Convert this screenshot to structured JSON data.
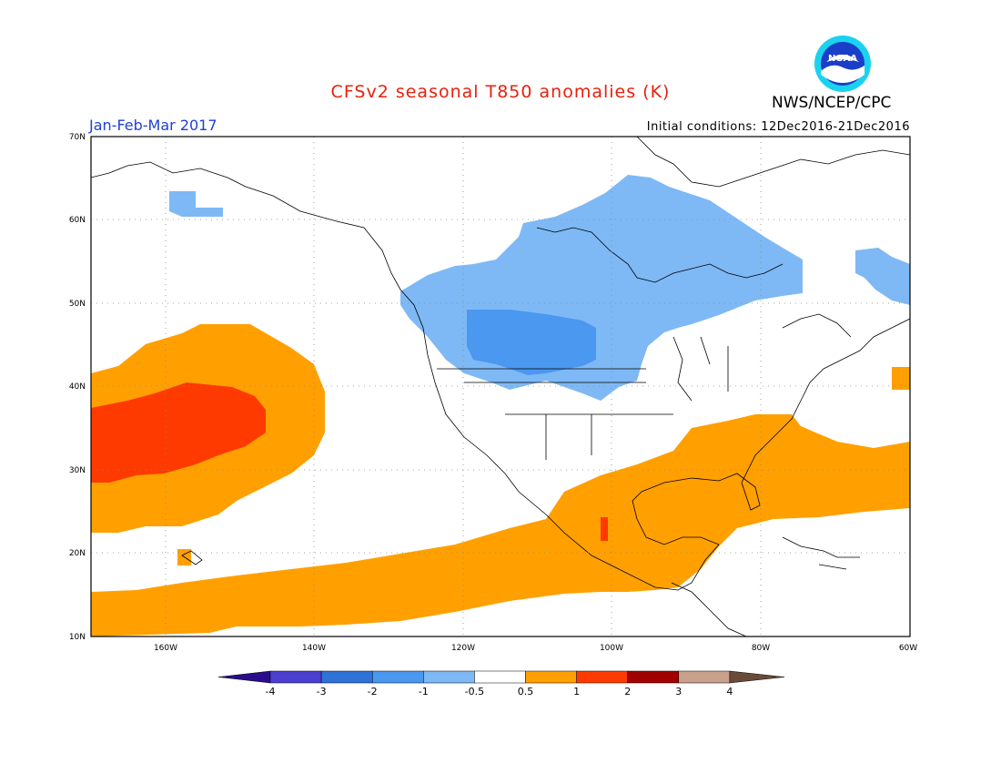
{
  "title": "CFSv2 seasonal T850 anomalies (K)",
  "agency": "NWS/NCEP/CPC",
  "period": "Jan-Feb-Mar 2017",
  "initial_conditions": "Initial conditions: 12Dec2016-21Dec2016",
  "logo_text": "NOAA",
  "lat_labels": [
    "70N",
    "60N",
    "50N",
    "40N",
    "30N",
    "20N",
    "10N"
  ],
  "lon_labels": [
    "160W",
    "140W",
    "120W",
    "100W",
    "80W",
    "60W"
  ],
  "colorbar": {
    "labels": [
      "-4",
      "-3",
      "-2",
      "-1",
      "-0.5",
      "0.5",
      "1",
      "2",
      "3",
      "4"
    ],
    "colors": [
      "#2a0d8c",
      "#4b3fcf",
      "#2f73d9",
      "#4a98ef",
      "#7eb9f5",
      "#ffffff",
      "#ffa000",
      "#ff3a00",
      "#a00000",
      "#c9a08c",
      "#6b4a3a"
    ]
  },
  "chart_data": {
    "type": "heatmap",
    "variable": "T850 anomaly",
    "units": "K",
    "domain": {
      "lon": [
        -170,
        -60
      ],
      "lat": [
        10,
        70
      ]
    },
    "anomaly_regions": [
      {
        "name": "Canada / northern US cold anomaly",
        "range_K": [
          -1,
          -0.5
        ]
      },
      {
        "name": "Northern Plains core cold anomaly",
        "range_K": [
          -2,
          -1
        ]
      },
      {
        "name": "Bering / Aleutian cold patch",
        "range_K": [
          -1,
          -0.5
        ]
      },
      {
        "name": "Labrador cold patch",
        "range_K": [
          -1,
          -0.5
        ]
      },
      {
        "name": "Central North Pacific warm anomaly",
        "range_K": [
          0.5,
          1
        ]
      },
      {
        "name": "Central North Pacific warm core",
        "range_K": [
          1,
          2
        ]
      },
      {
        "name": "Subtropical Pacific warm band",
        "range_K": [
          0.5,
          1
        ]
      },
      {
        "name": "Southeast US / Gulf of Mexico warm anomaly",
        "range_K": [
          0.5,
          1
        ]
      },
      {
        "name": "Mexico warm spot",
        "range_K": [
          1,
          2
        ]
      },
      {
        "name": "Western Atlantic warm band",
        "range_K": [
          0.5,
          1
        ]
      }
    ]
  }
}
